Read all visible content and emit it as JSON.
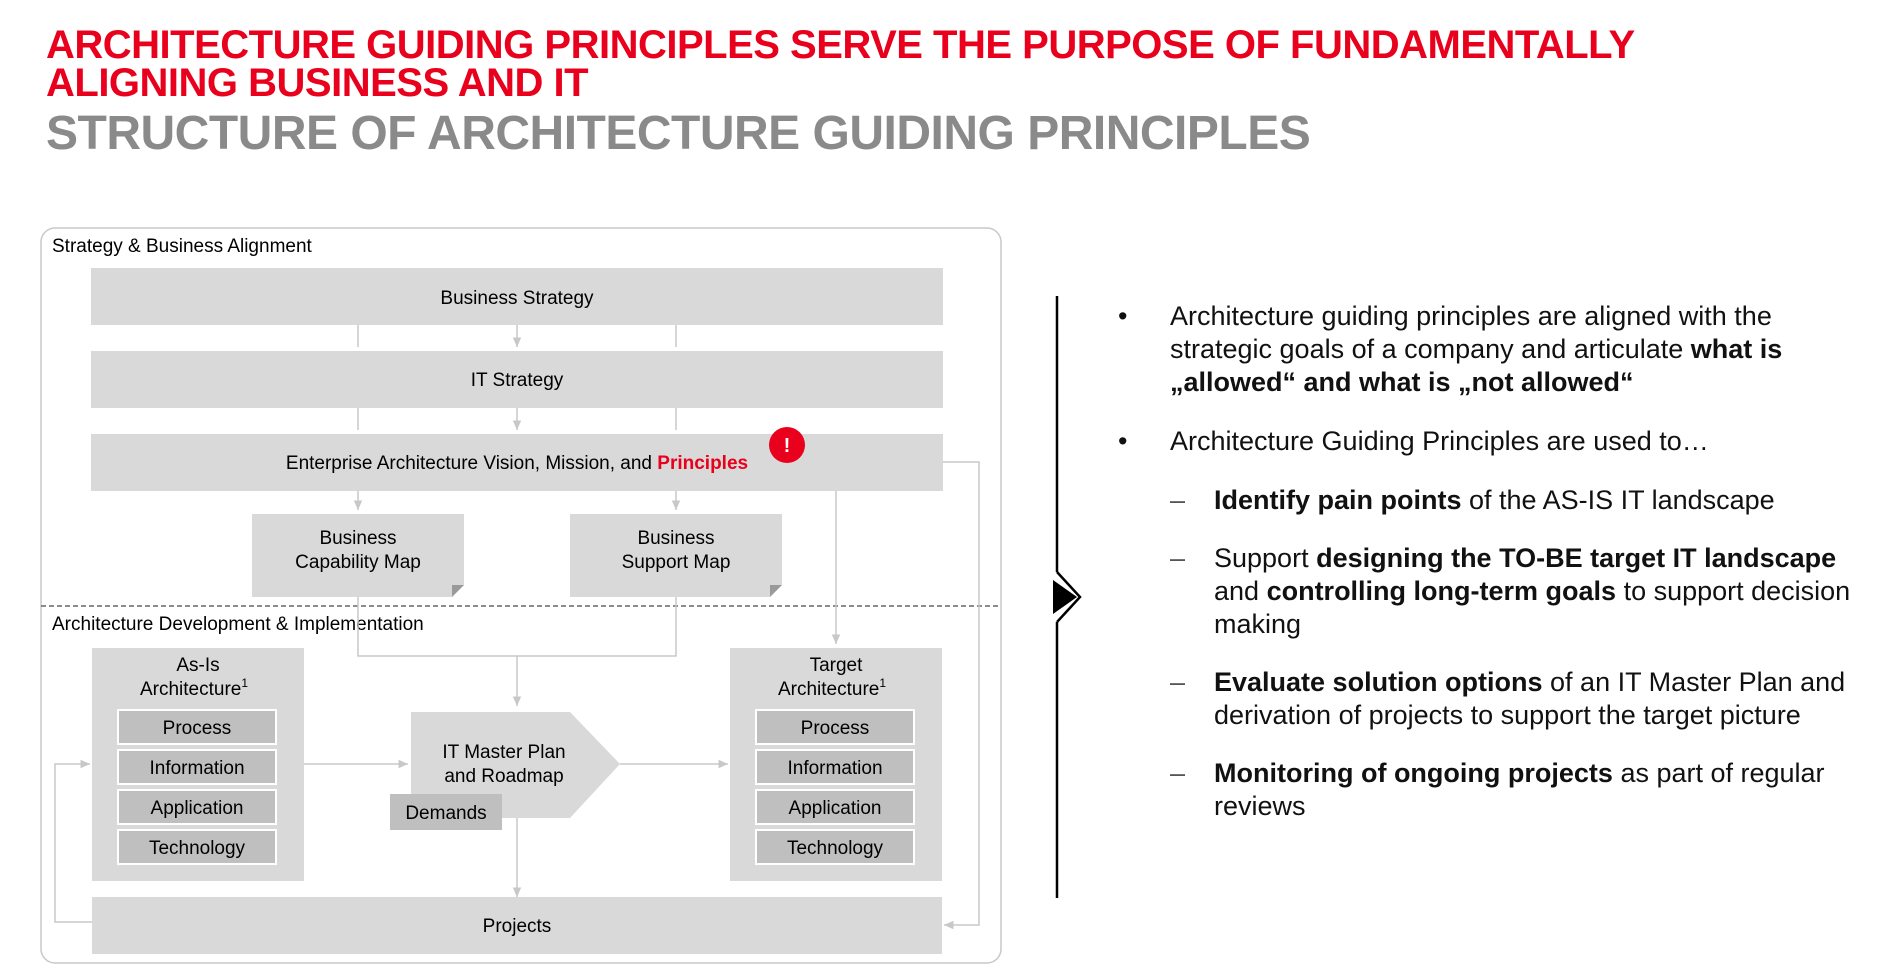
{
  "title": {
    "line1": "ARCHITECTURE GUIDING PRINCIPLES SERVE THE PURPOSE OF FUNDAMENTALLY",
    "line2": "ALIGNING BUSINESS AND IT",
    "subtitle": "STRUCTURE OF ARCHITECTURE GUIDING PRINCIPLES"
  },
  "diagram": {
    "section_top": "Strategy & Business Alignment",
    "section_bottom": "Architecture Development & Implementation",
    "business_strategy": "Business Strategy",
    "it_strategy": "IT Strategy",
    "ea_vision": "Enterprise Architecture Vision, Mission, and ",
    "ea_vision_highlight": "Principles",
    "alert_icon": "!",
    "capability_map": [
      "Business",
      "Capability Map"
    ],
    "support_map": [
      "Business",
      "Support Map"
    ],
    "as_is": [
      "As-Is",
      "Architecture",
      "1"
    ],
    "target": [
      "Target",
      "Architecture",
      "1"
    ],
    "layers": [
      "Process",
      "Information",
      "Application",
      "Technology"
    ],
    "master_plan": [
      "IT Master Plan",
      "and Roadmap"
    ],
    "demands": "Demands",
    "projects": "Projects"
  },
  "bullets": {
    "b1": [
      "Architecture guiding principles are aligned with the strategic goals of a company and articulate ",
      "what is „allowed“ and what is „not allowed“"
    ],
    "b2": "Architecture Guiding Principles are used to…",
    "s1": [
      "Identify pain points",
      " of the AS-IS IT landscape"
    ],
    "s2": [
      "Support ",
      "designing the TO-BE target IT landscape",
      " and ",
      "controlling long-term goals",
      " to support decision making"
    ],
    "s3": [
      "Evaluate solution options",
      " of an IT Master Plan and derivation of projects to support the target picture"
    ],
    "s4": [
      "Monitoring of ongoing projects",
      " as part of regular reviews"
    ],
    "bullet_mark": "•",
    "dash_mark": "–"
  },
  "colors": {
    "accent_red": "#e8001c",
    "title_grey": "#8a8a8a",
    "box_grey": "#d9d9d9",
    "layer_grey": "#bfbfbf"
  }
}
